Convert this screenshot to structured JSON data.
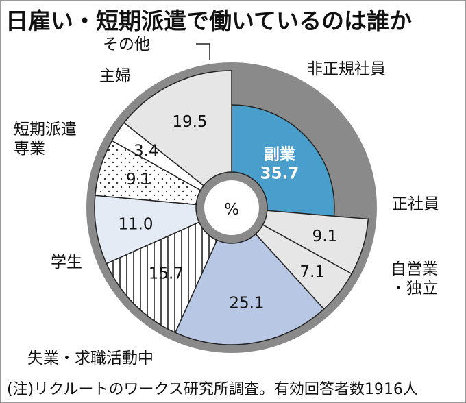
{
  "title": "日雇い・短期派遣で働いているのは誰か",
  "note": "(注)リクルートのワークス研究所調査。有効回答者数1916人",
  "chart_data": {
    "type": "pie",
    "variant": "donut",
    "center_label": "%",
    "slices": [
      {
        "label": "副業",
        "value": 35.7,
        "value_text": "35.7",
        "color": "#4a9ecb",
        "pattern": "solid",
        "highlight": true
      },
      {
        "label": "正社員",
        "value": 9.1,
        "value_text": "9.1",
        "color": "#e6e6e6",
        "pattern": "solid"
      },
      {
        "label": "自営業・独立",
        "value": 7.1,
        "value_text": "7.1",
        "color": "#e6e6e6",
        "pattern": "solid"
      },
      {
        "label": "失業・求職活動中",
        "value": 25.1,
        "value_text": "25.1",
        "color": "#b8c7e4",
        "pattern": "solid"
      },
      {
        "label": "学生",
        "value": 15.7,
        "value_text": "15.7",
        "color": "#ffffff",
        "pattern": "vertical-stripes"
      },
      {
        "label": "短期派遣専業",
        "value": 11.0,
        "value_text": "11.0",
        "color": "#e4ebf5",
        "pattern": "solid"
      },
      {
        "label": "主婦",
        "value": 9.1,
        "value_text": "9.1",
        "color": "#ffffff",
        "pattern": "dots"
      },
      {
        "label": "その他",
        "value": 3.4,
        "value_text": "3.4",
        "color": "#ffffff",
        "pattern": "solid"
      },
      {
        "label": "非正規社員",
        "value": 19.5,
        "value_text": "19.5",
        "color": "#e6e6e6",
        "pattern": "solid"
      }
    ]
  }
}
